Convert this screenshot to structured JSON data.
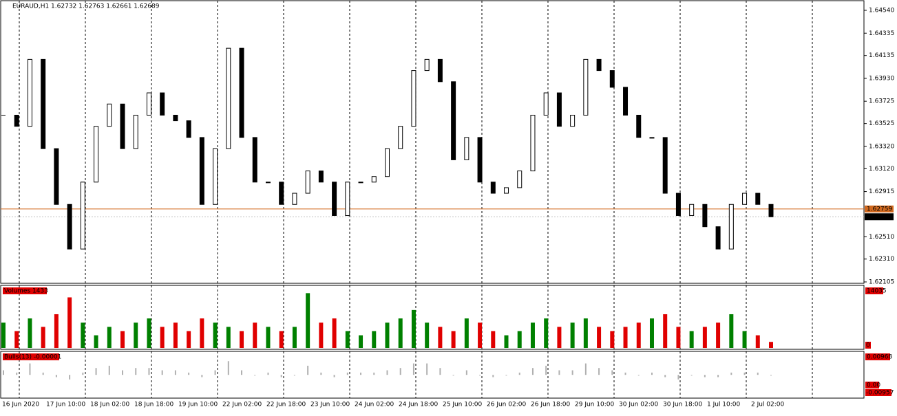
{
  "header": {
    "title": "EURAUD,H1  1.62732 1.62763 1.62661 1.62689"
  },
  "main": {
    "ylim": [
      1.62105,
      1.6454
    ],
    "yticks": [
      {
        "value": 1.6454,
        "label": "1.64540"
      },
      {
        "value": 1.64335,
        "label": "1.64335"
      },
      {
        "value": 1.64135,
        "label": "1.64135"
      },
      {
        "value": 1.6393,
        "label": "1.63930"
      },
      {
        "value": 1.63725,
        "label": "1.63725"
      },
      {
        "value": 1.63525,
        "label": "1.63525"
      },
      {
        "value": 1.6332,
        "label": "1.63320"
      },
      {
        "value": 1.6312,
        "label": "1.63120"
      },
      {
        "value": 1.62915,
        "label": "1.62915"
      },
      {
        "value": 1.6251,
        "label": "1.62510"
      },
      {
        "value": 1.6231,
        "label": "1.62310"
      },
      {
        "value": 1.62105,
        "label": "1.62105"
      }
    ],
    "ask": 1.62759,
    "bid": 1.62689,
    "closes": [
      1.636,
      1.635,
      1.641,
      1.633,
      1.628,
      1.624,
      1.63,
      1.635,
      1.637,
      1.633,
      1.636,
      1.638,
      1.636,
      1.6355,
      1.634,
      1.628,
      1.633,
      1.642,
      1.634,
      1.63,
      1.63,
      1.628,
      1.629,
      1.631,
      1.63,
      1.627,
      1.63,
      1.63,
      1.6305,
      1.633,
      1.635,
      1.64,
      1.641,
      1.639,
      1.632,
      1.634,
      1.63,
      1.629,
      1.6295,
      1.631,
      1.636,
      1.638,
      1.635,
      1.636,
      1.641,
      1.64,
      1.6385,
      1.636,
      1.634,
      1.634,
      1.629,
      1.627,
      1.628,
      1.626,
      1.624,
      1.628,
      1.629,
      1.628,
      1.62689
    ]
  },
  "volumes": {
    "label": "Volumes 1433",
    "ylim": [
      0,
      14035
    ],
    "top_label": "14035",
    "bottom_label": "0",
    "values": [
      6000,
      4000,
      7000,
      5000,
      8000,
      12000,
      6000,
      3000,
      5000,
      4000,
      6000,
      7000,
      5000,
      6000,
      4000,
      7000,
      6000,
      5000,
      4000,
      6000,
      5000,
      4000,
      5000,
      13000,
      6000,
      7000,
      4000,
      3000,
      4000,
      6000,
      7000,
      9000,
      6000,
      5000,
      4000,
      7000,
      6000,
      4000,
      3000,
      4000,
      6000,
      7000,
      5000,
      6000,
      7000,
      5000,
      4000,
      5000,
      6000,
      7000,
      8000,
      5000,
      4000,
      5000,
      6000,
      8000,
      4000,
      3000,
      1433
    ]
  },
  "bulls": {
    "label": "Bulls(13) -0.00001",
    "ylim": [
      -0.00957,
      0.00968
    ],
    "top_label": "0.00968",
    "zero_label": "0.00",
    "bottom_label": "-0.00957",
    "values": [
      0.002,
      0.001,
      0.005,
      0.001,
      -0.001,
      -0.002,
      0.001,
      0.003,
      0.004,
      0.002,
      0.003,
      0.003,
      0.002,
      0.002,
      0.001,
      -0.001,
      0.002,
      0.006,
      0.002,
      0.0,
      0.001,
      -0.001,
      0.0,
      0.004,
      0.001,
      -0.001,
      0.001,
      0.001,
      0.001,
      0.002,
      0.003,
      0.005,
      0.005,
      0.003,
      0.0,
      0.002,
      0.0,
      -0.001,
      0.0,
      0.001,
      0.003,
      0.004,
      0.002,
      0.002,
      0.005,
      0.003,
      0.002,
      0.001,
      0.0,
      0.001,
      -0.001,
      -0.002,
      0.0,
      -0.001,
      -0.001,
      0.001,
      0.001,
      0.001,
      -1e-05
    ]
  },
  "xlabels": [
    "16 Jun 2020",
    "17 Jun 10:00",
    "18 Jun 02:00",
    "18 Jun 18:00",
    "19 Jun 10:00",
    "22 Jun 02:00",
    "22 Jun 18:00",
    "23 Jun 10:00",
    "24 Jun 02:00",
    "24 Jun 18:00",
    "25 Jun 10:00",
    "26 Jun 02:00",
    "26 Jun 18:00",
    "29 Jun 10:00",
    "30 Jun 02:00",
    "30 Jun 18:00",
    "1 Jul 10:00",
    "2 Jul 02:00"
  ]
}
